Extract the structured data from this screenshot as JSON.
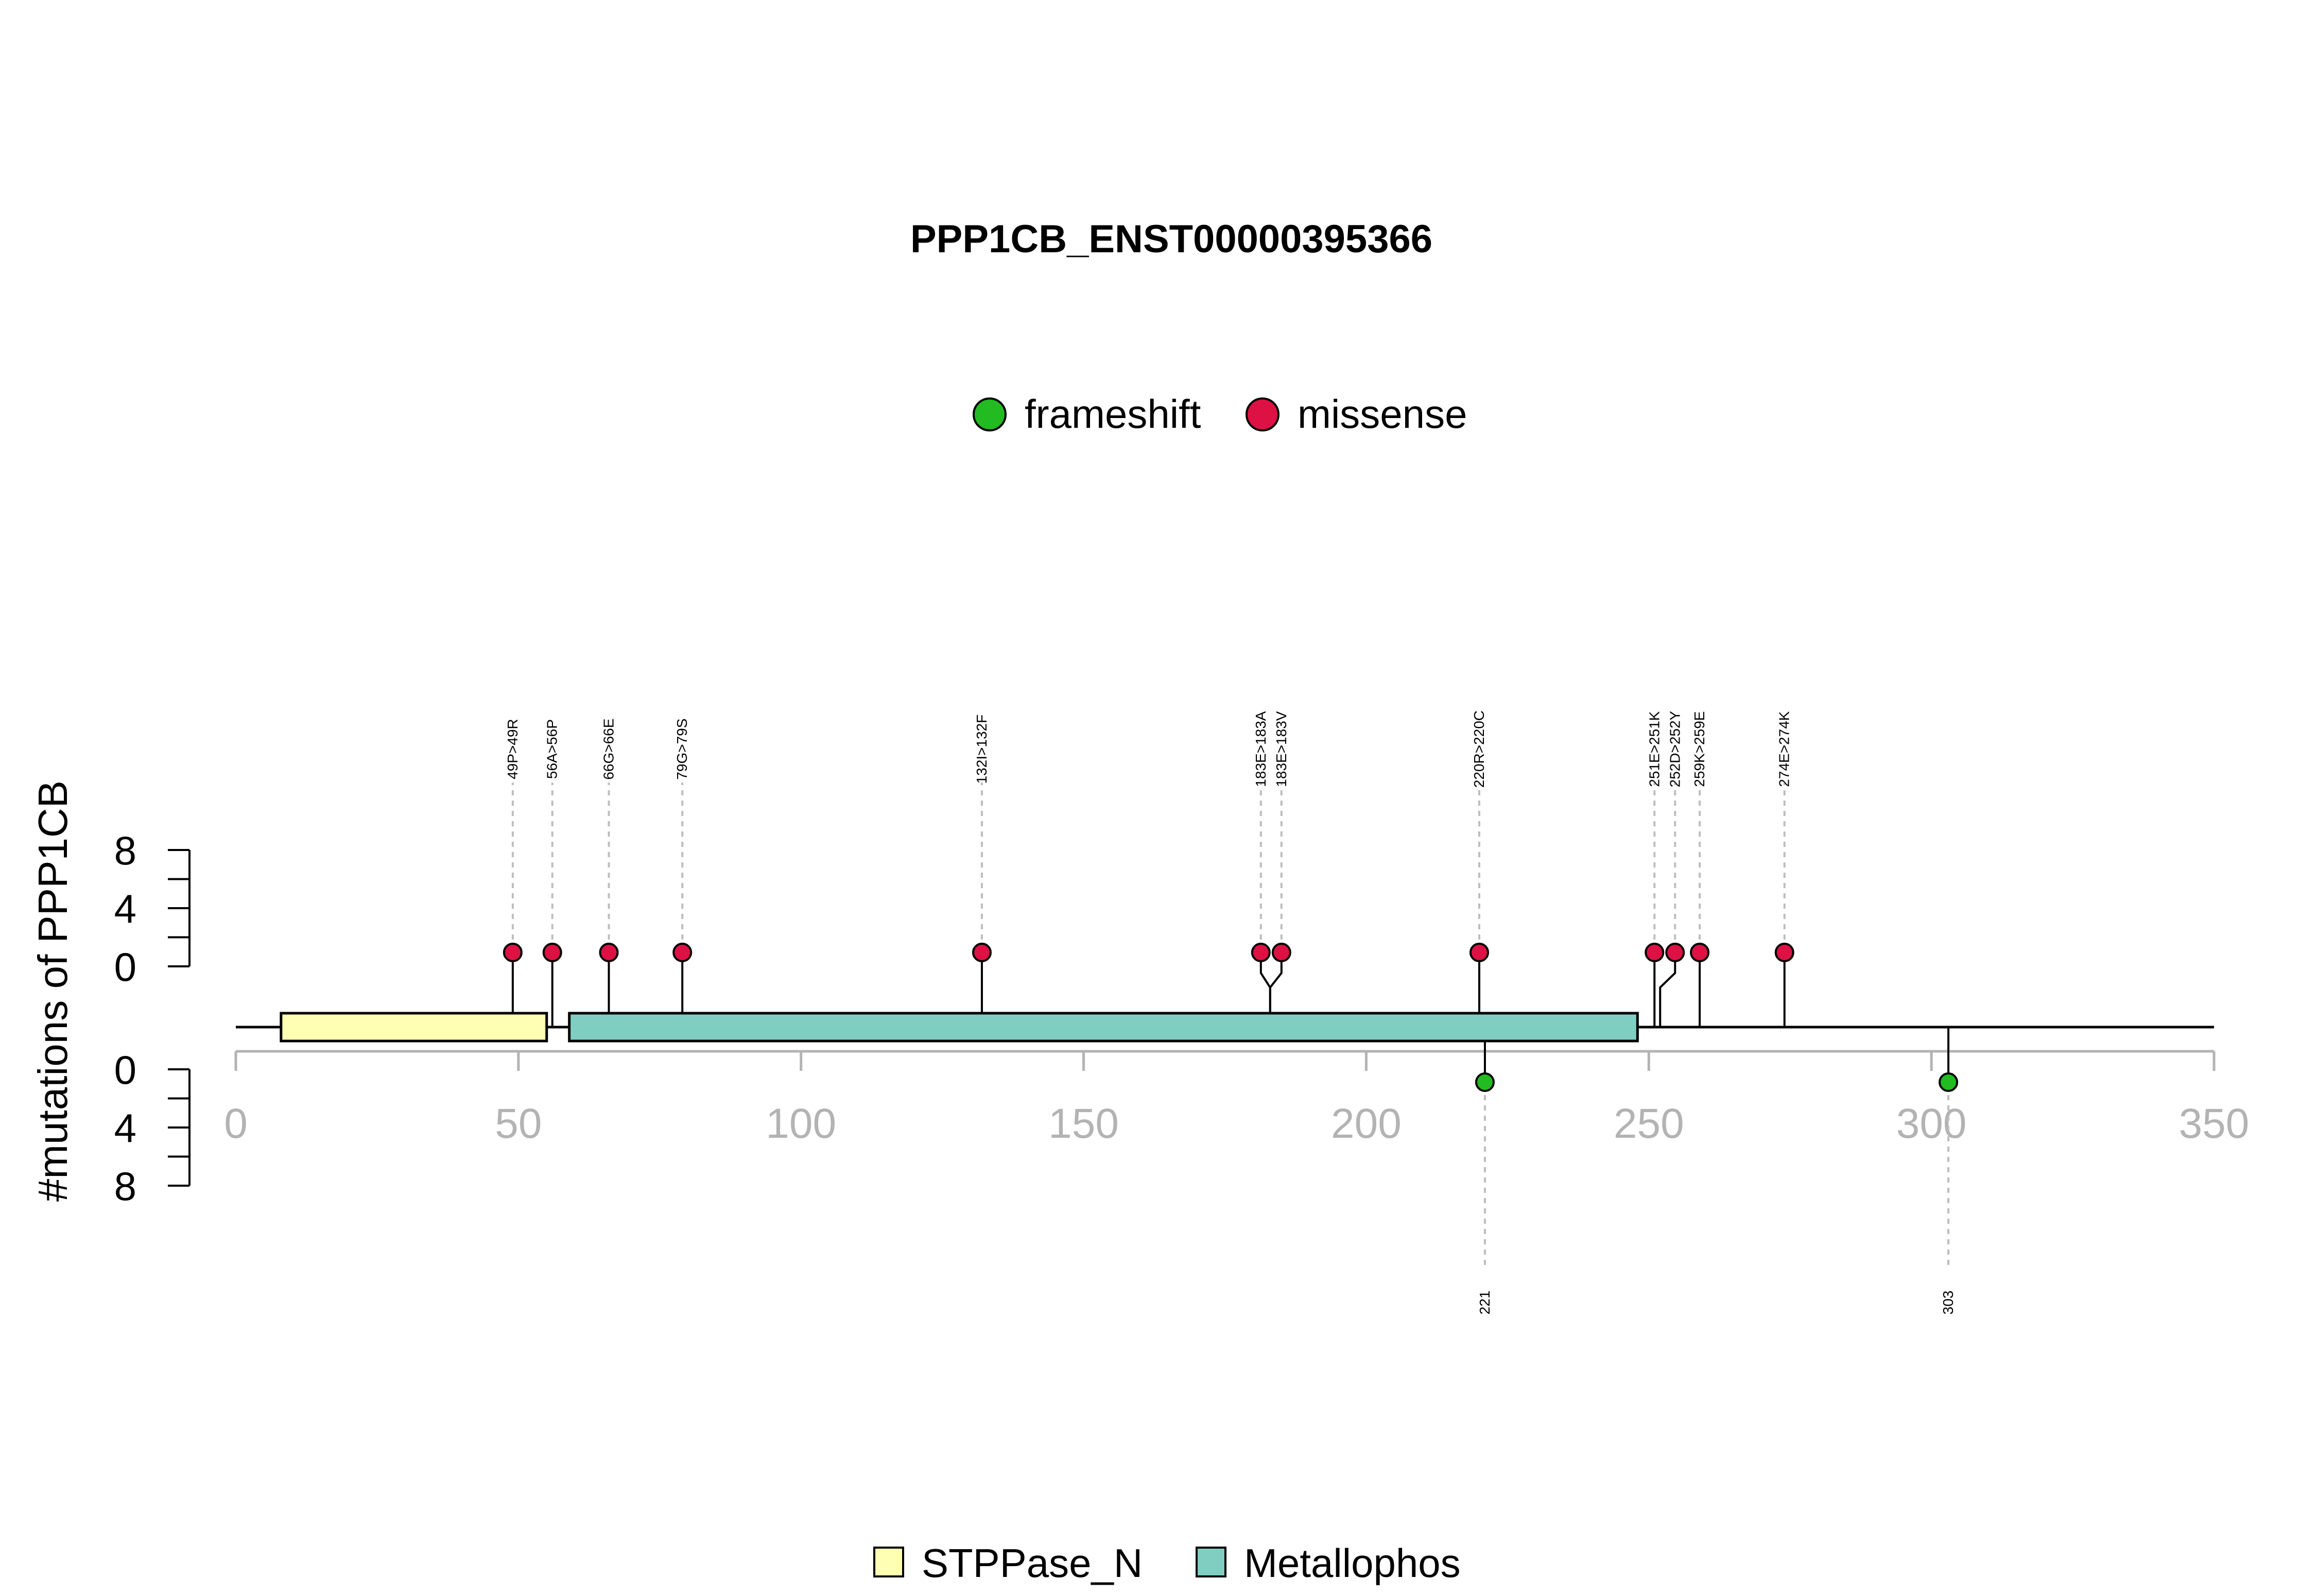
{
  "chart_data": {
    "type": "lollipop",
    "title": "PPP1CB_ENST00000395366",
    "ylabel": "#mutations of PPP1CB",
    "xlim": [
      0,
      350
    ],
    "x_ticks": [
      0,
      50,
      100,
      150,
      200,
      250,
      300,
      350
    ],
    "y_ticks_top": [
      0,
      4,
      8
    ],
    "y_ticks_bottom": [
      0,
      4,
      8
    ],
    "y_axis_range": [
      0,
      8
    ],
    "grid": false,
    "legend_mutations": [
      {
        "name": "frameshift",
        "color": "#22bb22"
      },
      {
        "name": "missense",
        "color": "#dd1144"
      }
    ],
    "legend_domains": [
      {
        "name": "STPPase_N",
        "color": "#ffffb3"
      },
      {
        "name": "Metallophos",
        "color": "#80cdc1"
      }
    ],
    "domains": [
      {
        "name": "STPPase_N",
        "start": 8,
        "end": 55
      },
      {
        "name": "Metallophos",
        "start": 59,
        "end": 248
      }
    ],
    "protein_length": 350,
    "missense": [
      {
        "label": "49P>49R",
        "position": 49,
        "count": 1
      },
      {
        "label": "56A>56P",
        "position": 56,
        "count": 1
      },
      {
        "label": "66G>66E",
        "position": 66,
        "count": 1
      },
      {
        "label": "79G>79S",
        "position": 79,
        "count": 1
      },
      {
        "label": "132I>132F",
        "position": 132,
        "count": 1
      },
      {
        "label": "183E>183A",
        "position": 183,
        "count": 1
      },
      {
        "label": "183E>183V",
        "position": 183,
        "count": 1
      },
      {
        "label": "220R>220C",
        "position": 220,
        "count": 1
      },
      {
        "label": "251E>251K",
        "position": 251,
        "count": 1
      },
      {
        "label": "252D>252Y",
        "position": 252,
        "count": 1
      },
      {
        "label": "259K>259E",
        "position": 259,
        "count": 1
      },
      {
        "label": "274E>274K",
        "position": 274,
        "count": 1
      }
    ],
    "frameshift": [
      {
        "label": "221",
        "position": 221,
        "count": 1
      },
      {
        "label": "303",
        "position": 303,
        "count": 1
      }
    ]
  }
}
